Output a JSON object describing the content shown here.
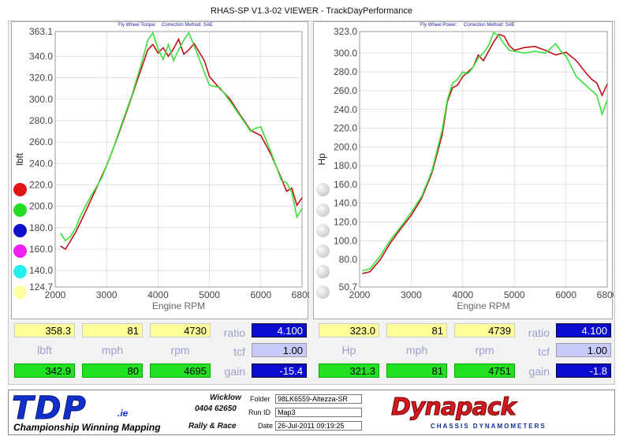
{
  "window_title": "RHAS-SP V1.3-02 VIEWER - TrackDayPerformance",
  "colors": {
    "red": "#c0101a",
    "green": "#3be03b",
    "accent_blue": "#0a0ad0"
  },
  "chart_data": [
    {
      "type": "line",
      "subtitle_a": "Fly Wheel Torque:",
      "subtitle_b": "Correction Method: SAE",
      "xlabel": "Engine RPM",
      "ylabel": "lbft",
      "xlim": [
        2000,
        6800
      ],
      "ylim": [
        124.7,
        363.1
      ],
      "x_ticks": [
        "2000",
        "3000",
        "4000",
        "5000",
        "6000",
        "6800"
      ],
      "y_ticks": [
        "363.1",
        "340.0",
        "320.0",
        "300.0",
        "280.0",
        "260.0",
        "240.0",
        "220.0",
        "200.0",
        "180.0",
        "160.0",
        "140.0",
        "124.7"
      ],
      "series": [
        {
          "color": "#c0101a",
          "points": [
            [
              2100,
              163
            ],
            [
              2200,
              160
            ],
            [
              2400,
              176
            ],
            [
              2600,
              196
            ],
            [
              2800,
              217
            ],
            [
              3000,
              238
            ],
            [
              3200,
              263
            ],
            [
              3400,
              290
            ],
            [
              3600,
              318
            ],
            [
              3800,
              346
            ],
            [
              3900,
              351
            ],
            [
              4000,
              343
            ],
            [
              4100,
              348
            ],
            [
              4200,
              340
            ],
            [
              4300,
              347
            ],
            [
              4400,
              356
            ],
            [
              4500,
              342
            ],
            [
              4600,
              346
            ],
            [
              4700,
              352
            ],
            [
              4800,
              344
            ],
            [
              4900,
              336
            ],
            [
              5000,
              321
            ],
            [
              5200,
              310
            ],
            [
              5400,
              300
            ],
            [
              5600,
              285
            ],
            [
              5800,
              271
            ],
            [
              6000,
              266
            ],
            [
              6200,
              248
            ],
            [
              6400,
              226
            ],
            [
              6500,
              214
            ],
            [
              6600,
              217
            ],
            [
              6700,
              201
            ],
            [
              6800,
              208
            ]
          ]
        },
        {
          "color": "#3be03b",
          "points": [
            [
              2100,
              175
            ],
            [
              2200,
              168
            ],
            [
              2300,
              172
            ],
            [
              2400,
              180
            ],
            [
              2500,
              192
            ],
            [
              2700,
              210
            ],
            [
              2900,
              226
            ],
            [
              3100,
              250
            ],
            [
              3300,
              278
            ],
            [
              3500,
              305
            ],
            [
              3700,
              337
            ],
            [
              3800,
              355
            ],
            [
              3900,
              362
            ],
            [
              4000,
              347
            ],
            [
              4100,
              337
            ],
            [
              4200,
              351
            ],
            [
              4300,
              336
            ],
            [
              4400,
              346
            ],
            [
              4500,
              355
            ],
            [
              4600,
              362
            ],
            [
              4700,
              350
            ],
            [
              4800,
              338
            ],
            [
              4900,
              325
            ],
            [
              5000,
              313
            ],
            [
              5200,
              311
            ],
            [
              5400,
              298
            ],
            [
              5600,
              284
            ],
            [
              5800,
              270
            ],
            [
              5900,
              273
            ],
            [
              6000,
              274
            ],
            [
              6200,
              250
            ],
            [
              6400,
              224
            ],
            [
              6500,
              222
            ],
            [
              6600,
              213
            ],
            [
              6700,
              190
            ],
            [
              6800,
              198
            ]
          ]
        }
      ],
      "legend_colors": [
        "#e31414",
        "#22dd22",
        "#1010cc",
        "#f020f0",
        "#22eeee",
        "#ffffa0"
      ],
      "readouts": {
        "top": [
          "358.3",
          "81",
          "4730"
        ],
        "bottom": [
          "342.9",
          "80",
          "4695"
        ],
        "units": [
          "lbft",
          "mph",
          "rpm"
        ],
        "ratio_label": "ratio",
        "ratio_value": "4.100",
        "tcf_label": "tcf",
        "tcf_value": "1.00",
        "gain_label": "gain",
        "gain_value": "-15.4"
      }
    },
    {
      "type": "line",
      "subtitle_a": "Fly Wheel Power:",
      "subtitle_b": "Correction Method: SAE",
      "xlabel": "Engine RPM",
      "ylabel": "Hp",
      "xlim": [
        2000,
        6800
      ],
      "ylim": [
        50.7,
        323.0
      ],
      "x_ticks": [
        "2000",
        "3000",
        "4000",
        "5000",
        "6000",
        "6800"
      ],
      "y_ticks": [
        "323.0",
        "300.0",
        "280.0",
        "260.0",
        "240.0",
        "220.0",
        "200.0",
        "180.0",
        "160.0",
        "140.0",
        "120.0",
        "100.0",
        "80.0",
        "50.7"
      ],
      "series": [
        {
          "color": "#c0101a",
          "points": [
            [
              2050,
              65
            ],
            [
              2200,
              67
            ],
            [
              2400,
              80
            ],
            [
              2600,
              98
            ],
            [
              2800,
              113
            ],
            [
              3000,
              127
            ],
            [
              3200,
              145
            ],
            [
              3400,
              172
            ],
            [
              3600,
              213
            ],
            [
              3700,
              248
            ],
            [
              3800,
              263
            ],
            [
              3900,
              266
            ],
            [
              4000,
              275
            ],
            [
              4200,
              285
            ],
            [
              4300,
              298
            ],
            [
              4400,
              292
            ],
            [
              4600,
              312
            ],
            [
              4700,
              320
            ],
            [
              4800,
              318
            ],
            [
              4900,
              308
            ],
            [
              5000,
              303
            ],
            [
              5200,
              306
            ],
            [
              5400,
              307
            ],
            [
              5600,
              303
            ],
            [
              5800,
              298
            ],
            [
              6000,
              301
            ],
            [
              6200,
              292
            ],
            [
              6400,
              278
            ],
            [
              6500,
              272
            ],
            [
              6600,
              268
            ],
            [
              6700,
              255
            ],
            [
              6800,
              267
            ]
          ]
        },
        {
          "color": "#3be03b",
          "points": [
            [
              2050,
              68
            ],
            [
              2200,
              70
            ],
            [
              2400,
              84
            ],
            [
              2600,
              101
            ],
            [
              2800,
              115
            ],
            [
              3000,
              130
            ],
            [
              3200,
              147
            ],
            [
              3400,
              174
            ],
            [
              3600,
              218
            ],
            [
              3700,
              250
            ],
            [
              3800,
              268
            ],
            [
              3900,
              272
            ],
            [
              4000,
              280
            ],
            [
              4100,
              278
            ],
            [
              4200,
              285
            ],
            [
              4300,
              295
            ],
            [
              4400,
              300
            ],
            [
              4500,
              308
            ],
            [
              4600,
              322
            ],
            [
              4700,
              318
            ],
            [
              4800,
              310
            ],
            [
              4900,
              303
            ],
            [
              5000,
              302
            ],
            [
              5200,
              300
            ],
            [
              5400,
              302
            ],
            [
              5600,
              300
            ],
            [
              5800,
              310
            ],
            [
              5900,
              302
            ],
            [
              6000,
              297
            ],
            [
              6200,
              275
            ],
            [
              6400,
              265
            ],
            [
              6600,
              255
            ],
            [
              6700,
              235
            ],
            [
              6800,
              250
            ]
          ]
        }
      ],
      "legend_colors": [
        "#dddddd",
        "#dddddd",
        "#dddddd",
        "#dddddd",
        "#dddddd",
        "#eeeeee"
      ],
      "readouts": {
        "top": [
          "323.0",
          "81",
          "4739"
        ],
        "bottom": [
          "321.3",
          "81",
          "4751"
        ],
        "units": [
          "Hp",
          "mph",
          "rpm"
        ],
        "ratio_label": "ratio",
        "ratio_value": "4.100",
        "tcf_label": "tcf",
        "tcf_value": "1.00",
        "gain_label": "gain",
        "gain_value": "-1.8"
      }
    }
  ],
  "footer": {
    "logo_text": "TDP",
    "logo_suffix": ".ie",
    "slogan": "Championship Winning Mapping",
    "location": "Wicklow",
    "phone": "0404 62650",
    "rally": "Rally & Race",
    "folder_label": "Folder",
    "folder_value": "98LK6559-Altezza-SR",
    "runid_label": "Run ID",
    "runid_value": "Map3",
    "date_label": "Date",
    "date_value": "26-Jul-2011  09:19:25",
    "brand": "Dynapack",
    "brand_sub": "CHASSIS DYNAMOMETERS"
  }
}
